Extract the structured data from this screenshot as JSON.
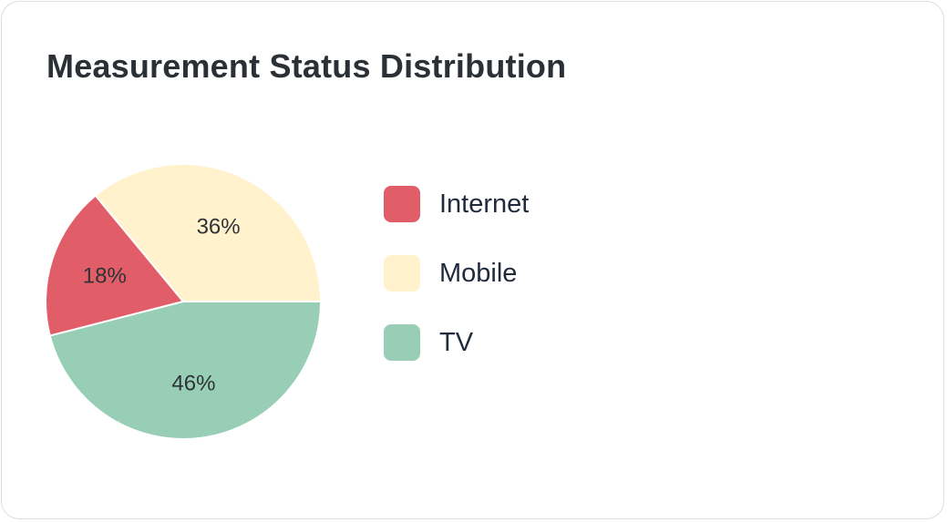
{
  "title": "Measurement Status Distribution",
  "chart_data": {
    "type": "pie",
    "title": "Measurement Status Distribution",
    "slices": [
      {
        "label": "Internet",
        "value": 18,
        "display": "18%",
        "color": "#e15e69"
      },
      {
        "label": "Mobile",
        "value": 36,
        "display": "36%",
        "color": "#fff2cd"
      },
      {
        "label": "TV",
        "value": 46,
        "display": "46%",
        "color": "#98ceb5"
      }
    ],
    "legend_position": "right"
  }
}
